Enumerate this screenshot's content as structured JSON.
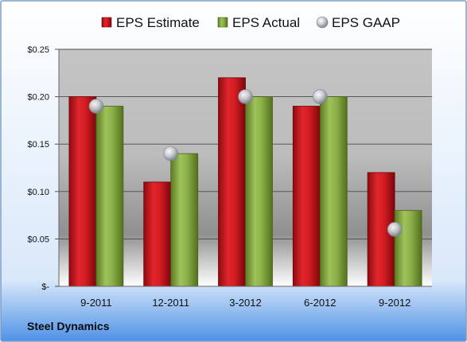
{
  "footer": {
    "company": "Steel Dynamics"
  },
  "colors": {
    "estimate": "#c8141e",
    "actual": "#8fb04a",
    "gaap": "#c8ccd2",
    "border": "#7b9dc9"
  },
  "chart_data": {
    "type": "bar",
    "title": "",
    "xlabel": "",
    "ylabel": "",
    "categories": [
      "9-2011",
      "12-2011",
      "3-2012",
      "6-2012",
      "9-2012"
    ],
    "series": [
      {
        "name": "EPS Estimate",
        "kind": "bar",
        "values": [
          0.2,
          0.11,
          0.22,
          0.19,
          0.12
        ]
      },
      {
        "name": "EPS Actual",
        "kind": "bar",
        "values": [
          0.19,
          0.14,
          0.2,
          0.2,
          0.08
        ]
      },
      {
        "name": "EPS GAAP",
        "kind": "marker",
        "values": [
          0.19,
          0.14,
          0.2,
          0.2,
          0.06
        ]
      }
    ],
    "ylim": [
      0,
      0.25
    ],
    "y_ticks": [
      0,
      0.05,
      0.1,
      0.15,
      0.2,
      0.25
    ],
    "y_tick_labels": [
      "$-",
      "$0.05",
      "$0.10",
      "$0.15",
      "$0.20",
      "$0.25"
    ],
    "grid": true,
    "legend_position": "top"
  }
}
